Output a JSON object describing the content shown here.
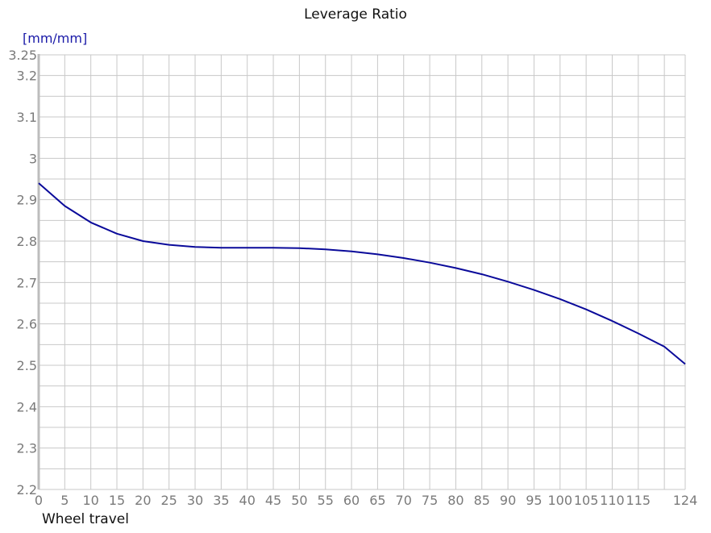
{
  "chart_data": {
    "type": "line",
    "title": "Leverage Ratio",
    "ylabel": "[mm/mm]",
    "xlabel": "Wheel travel",
    "xlim": [
      0,
      124
    ],
    "ylim": [
      2.2,
      3.25
    ],
    "grid": true,
    "x_ticks": [
      0,
      5,
      10,
      15,
      20,
      25,
      30,
      35,
      40,
      45,
      50,
      55,
      60,
      65,
      70,
      75,
      80,
      85,
      90,
      95,
      100,
      105,
      110,
      115,
      124
    ],
    "x_gridlines": [
      0,
      5,
      10,
      15,
      20,
      25,
      30,
      35,
      40,
      45,
      50,
      55,
      60,
      65,
      70,
      75,
      80,
      85,
      90,
      95,
      100,
      105,
      110,
      115,
      120,
      124
    ],
    "y_ticks": [
      2.2,
      2.3,
      2.4,
      2.5,
      2.6,
      2.7,
      2.8,
      2.9,
      3,
      3.1,
      3.2,
      3.25
    ],
    "y_gridlines": [
      2.2,
      2.25,
      2.3,
      2.35,
      2.4,
      2.45,
      2.5,
      2.55,
      2.6,
      2.65,
      2.7,
      2.75,
      2.8,
      2.85,
      2.9,
      2.95,
      3,
      3.05,
      3.1,
      3.15,
      3.2,
      3.25
    ],
    "series": [
      {
        "name": "Leverage Ratio",
        "color": "#0a0a9a",
        "x": [
          0,
          5,
          10,
          15,
          20,
          25,
          30,
          35,
          40,
          45,
          50,
          55,
          60,
          65,
          70,
          75,
          80,
          85,
          90,
          95,
          100,
          105,
          110,
          115,
          120,
          124
        ],
        "values": [
          2.94,
          2.885,
          2.845,
          2.818,
          2.8,
          2.791,
          2.786,
          2.784,
          2.784,
          2.784,
          2.783,
          2.78,
          2.775,
          2.768,
          2.759,
          2.748,
          2.735,
          2.72,
          2.702,
          2.682,
          2.66,
          2.635,
          2.607,
          2.577,
          2.545,
          2.503
        ]
      }
    ]
  },
  "colors": {
    "line": "#0a0a9a",
    "grid": "#c8c8c8",
    "tick_text": "#7a7a7a",
    "unit_text": "#1a1aa8"
  }
}
